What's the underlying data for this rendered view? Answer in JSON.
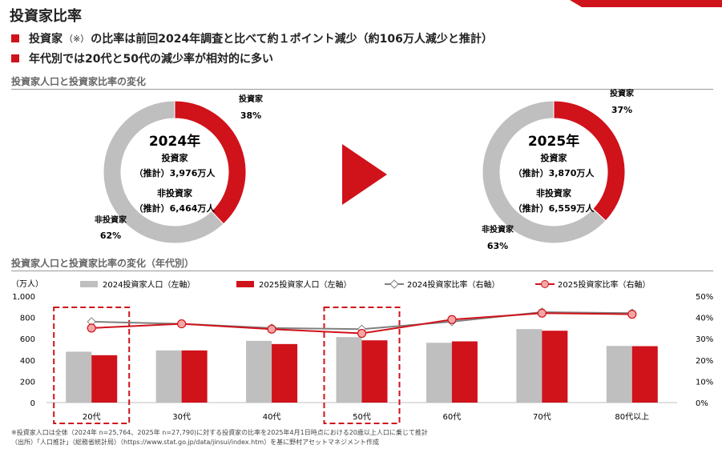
{
  "page": {
    "title": "投資家比率",
    "bullets": [
      {
        "pre": "投資家",
        "note": "（※）",
        "post": "の比率は前回2024年調査と比べて約１ポイント減少（約106万人減少と推計）"
      },
      {
        "pre": "年代別では20代と50代の減少率が相対的に多い",
        "note": "",
        "post": ""
      }
    ],
    "section1_title": "投資家人口と投資家比率の変化",
    "section2_title": "投資家人口と投資家比率の変化（年代別）",
    "footnote1": "※投資家人口は全体（2024年 n=25,764、2025年 n=27,790)に対する投資家の比率を2025年4月1日時点における20歳以上人口に乗じて推計",
    "footnote2": "（出所）「人口推計」（総務省統計局）（https://www.stat.go.jp/data/jinsui/index.htm）を基に野村アセットマネジメント作成"
  },
  "colors": {
    "red": "#d0121b",
    "gray": "#bfbfbf",
    "dark_gray": "#7f7f7f",
    "pink": "#f4a6a6"
  },
  "chart_data": [
    {
      "type": "pie",
      "center_title": "2024年",
      "center_lines": [
        "投資家",
        "（推計）3,976万人",
        "非投資家",
        "（推計）6,464万人"
      ],
      "labels": [
        "投資家",
        "非投資家"
      ],
      "values": [
        38,
        62
      ],
      "value_labels": [
        "38%",
        "62%"
      ],
      "colors": [
        "#d0121b",
        "#bfbfbf"
      ]
    },
    {
      "type": "pie",
      "center_title": "2025年",
      "center_lines": [
        "投資家",
        "（推計）3,870万人",
        "非投資家",
        "（推計）6,559万人"
      ],
      "labels": [
        "投資家",
        "非投資家"
      ],
      "values": [
        37,
        63
      ],
      "value_labels": [
        "37%",
        "63%"
      ],
      "colors": [
        "#d0121b",
        "#bfbfbf"
      ]
    },
    {
      "type": "bar",
      "categories": [
        "20代",
        "30代",
        "40代",
        "50代",
        "60代",
        "70代",
        "80代以上"
      ],
      "y_left_unit": "（万人）",
      "y_left_ticks": [
        "0",
        "200",
        "400",
        "600",
        "800",
        "1,000"
      ],
      "y_left_lim": [
        0,
        1000
      ],
      "y_right_ticks": [
        "0%",
        "10%",
        "20%",
        "30%",
        "40%",
        "50%"
      ],
      "y_right_lim": [
        0,
        50
      ],
      "legend_position": "top",
      "highlighted_categories": [
        "20代",
        "50代"
      ],
      "series": [
        {
          "name": "2024投資家人口（左軸）",
          "kind": "bar",
          "axis": "left",
          "color": "#bfbfbf",
          "values": [
            478,
            490,
            580,
            615,
            562,
            690,
            532
          ]
        },
        {
          "name": "2025投資家人口（左軸）",
          "kind": "bar",
          "axis": "left",
          "color": "#d0121b",
          "values": [
            445,
            490,
            550,
            585,
            575,
            675,
            530
          ]
        },
        {
          "name": "2024投資家比率（右軸）",
          "kind": "line",
          "axis": "right",
          "color": "#7f7f7f",
          "marker": "diamond",
          "values": [
            38,
            37,
            35,
            34.5,
            38,
            42.5,
            42
          ]
        },
        {
          "name": "2025投資家比率（右軸）",
          "kind": "line",
          "axis": "right",
          "color": "#d0121b",
          "marker": "circle",
          "values": [
            35,
            37,
            34.5,
            32.5,
            39,
            42,
            41.5
          ]
        }
      ]
    }
  ]
}
